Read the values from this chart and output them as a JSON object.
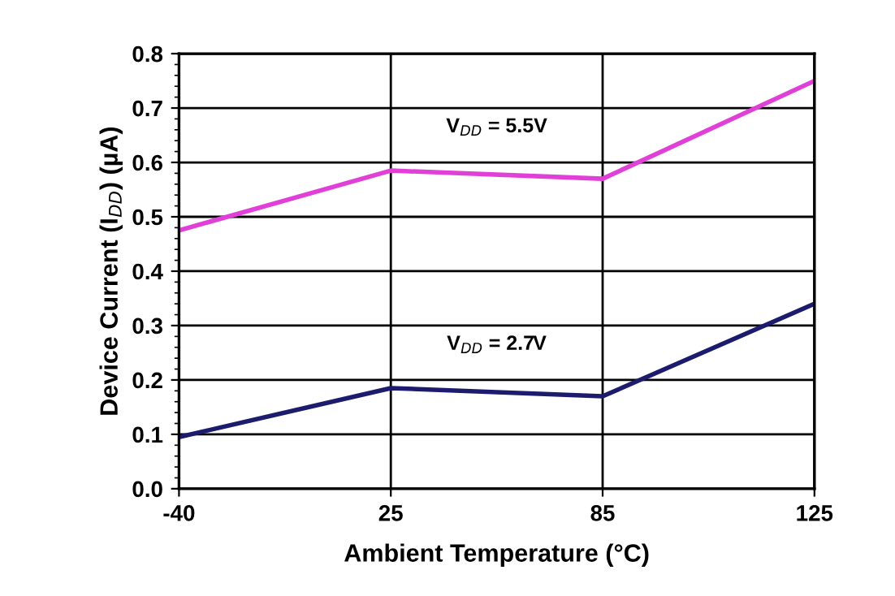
{
  "chart_data": {
    "type": "line",
    "xlabel": "Ambient Temperature (°C)",
    "ylabel": "Device Current (I$_{DD}$) (µA)",
    "categories": [
      "-40",
      "25",
      "85",
      "125"
    ],
    "series": [
      {
        "name": "V$_{DD}$ = 5.5V",
        "color": "#e040d8",
        "values": [
          0.475,
          0.585,
          0.57,
          0.75
        ]
      },
      {
        "name": "V$_{DD}$ = 2.7V",
        "color": "#1c1c6e",
        "values": [
          0.095,
          0.185,
          0.17,
          0.34
        ]
      }
    ],
    "ylim": [
      0.0,
      0.8
    ],
    "yticks": [
      {
        "value": 0.0,
        "label": "0.0"
      },
      0.1,
      0.2,
      0.3,
      0.4,
      0.5,
      0.6,
      0.7,
      0.8
    ],
    "grid": true,
    "marker": "none",
    "line_style": "solid",
    "legend": false
  }
}
